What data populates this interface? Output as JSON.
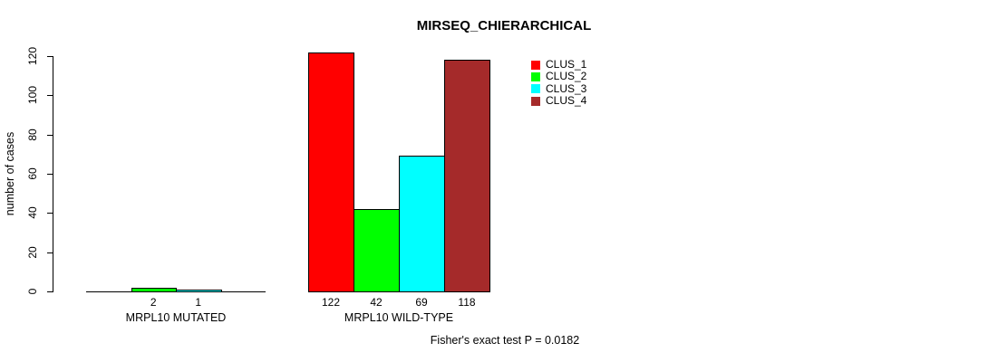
{
  "chart_data": {
    "type": "bar",
    "title": "MIRSEQ_CHIERARCHICAL",
    "ylabel": "number of cases",
    "xlabel": "",
    "ylim": [
      0,
      120
    ],
    "yticks": [
      0,
      20,
      40,
      60,
      80,
      100,
      120
    ],
    "grid": false,
    "legend_position": "top-right-inside",
    "value_labels_shown": "nonzero_only",
    "categories": [
      "MRPL10 MUTATED",
      "MRPL10 WILD-TYPE"
    ],
    "series": [
      {
        "name": "CLUS_1",
        "color": "#ff0000",
        "values": [
          0,
          122
        ]
      },
      {
        "name": "CLUS_2",
        "color": "#00ff00",
        "values": [
          2,
          42
        ]
      },
      {
        "name": "CLUS_3",
        "color": "#00ffff",
        "values": [
          1,
          69
        ]
      },
      {
        "name": "CLUS_4",
        "color": "#a52a2a",
        "values": [
          0,
          118
        ]
      }
    ],
    "footnote": "Fisher's exact test P = 0.0182"
  }
}
